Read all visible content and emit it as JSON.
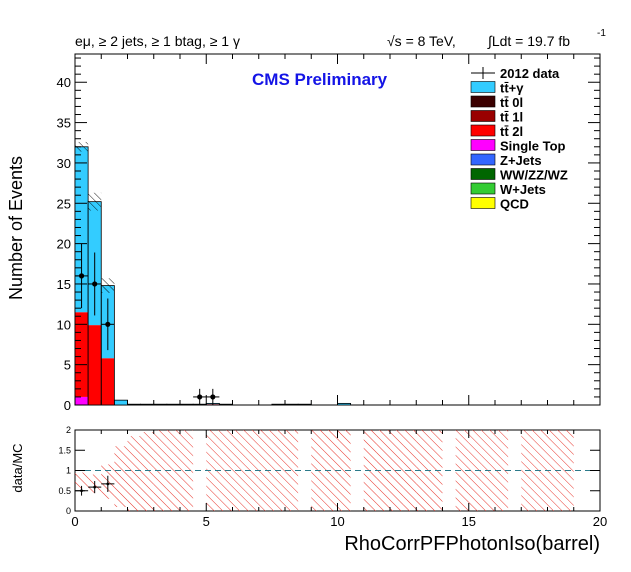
{
  "header": {
    "selection": "eμ, ≥ 2 jets, ≥ 1 btag, ≥ 1 γ",
    "energy": "√s = 8 TeV,",
    "lumi": "∫Ldt = 19.7 fb",
    "lumi_sup": "-1"
  },
  "watermark": "CMS Preliminary",
  "chart_data": [
    {
      "type": "bar",
      "stacked": true,
      "xlabel": "RhoCorrPFPhotonIso(barrel)",
      "ylabel": "Number of Events",
      "xlim": [
        0,
        20
      ],
      "ylim": [
        0,
        43.5
      ],
      "x_ticks": [
        0,
        5,
        10,
        15,
        20
      ],
      "y_ticks": [
        0,
        5,
        10,
        15,
        20,
        25,
        30,
        35,
        40
      ],
      "bin_width": 0.5,
      "bins": [
        0.0,
        0.5,
        1.0,
        1.5,
        2.0,
        2.5,
        3.0,
        3.5,
        4.0,
        4.5,
        5.0,
        5.5,
        6.0,
        6.5,
        7.0,
        7.5,
        8.0,
        8.5,
        9.0,
        9.5,
        10.0,
        10.5,
        11.0,
        11.5,
        12.0,
        12.5,
        13.0,
        13.5,
        14.0,
        14.5,
        15.0,
        15.5,
        16.0,
        16.5,
        17.0,
        17.5,
        18.0,
        18.5,
        19.0,
        19.5
      ],
      "series": [
        {
          "name": "tt̄+γ",
          "color": "#33ccff",
          "values": [
            20.5,
            15.3,
            9.0,
            0.6,
            0.1,
            0.1,
            0.1,
            0.1,
            0.1,
            0.1,
            0.1,
            0.1,
            0,
            0,
            0,
            0.1,
            0.1,
            0.1,
            0,
            0,
            0.2,
            0,
            0,
            0,
            0,
            0,
            0,
            0,
            0,
            0,
            0,
            0,
            0,
            0,
            0,
            0,
            0,
            0,
            0,
            0
          ]
        },
        {
          "name": "tt̄ 0l",
          "color": "#3b0000",
          "values": [
            0,
            0,
            0,
            0,
            0,
            0,
            0,
            0,
            0,
            0,
            0,
            0,
            0,
            0,
            0,
            0,
            0,
            0,
            0,
            0,
            0,
            0,
            0,
            0,
            0,
            0,
            0,
            0,
            0,
            0,
            0,
            0,
            0,
            0,
            0,
            0,
            0,
            0,
            0,
            0
          ]
        },
        {
          "name": "tt̄ 1l",
          "color": "#990000",
          "values": [
            0,
            0,
            0,
            0,
            0,
            0,
            0,
            0,
            0,
            0,
            0,
            0,
            0,
            0,
            0,
            0,
            0,
            0,
            0,
            0,
            0,
            0,
            0,
            0,
            0,
            0,
            0,
            0,
            0,
            0,
            0,
            0,
            0,
            0,
            0,
            0,
            0,
            0,
            0,
            0
          ]
        },
        {
          "name": "tt̄ 2l",
          "color": "#ff0000",
          "values": [
            10.5,
            9.9,
            5.8,
            0,
            0,
            0,
            0,
            0,
            0,
            0,
            0.1,
            0,
            0,
            0,
            0,
            0,
            0,
            0,
            0,
            0,
            0,
            0,
            0,
            0,
            0,
            0,
            0,
            0,
            0,
            0,
            0,
            0,
            0,
            0,
            0,
            0,
            0,
            0,
            0,
            0
          ]
        },
        {
          "name": "Single Top",
          "color": "#ff00ff",
          "values": [
            1.0,
            0,
            0,
            0,
            0,
            0,
            0,
            0,
            0,
            0,
            0,
            0,
            0,
            0,
            0,
            0,
            0,
            0,
            0,
            0,
            0,
            0,
            0,
            0,
            0,
            0,
            0,
            0,
            0,
            0,
            0,
            0,
            0,
            0,
            0,
            0,
            0,
            0,
            0,
            0
          ]
        },
        {
          "name": "Z+Jets",
          "color": "#3366ff",
          "values": [
            0,
            0,
            0,
            0,
            0,
            0,
            0,
            0,
            0,
            0,
            0,
            0,
            0,
            0,
            0,
            0,
            0,
            0,
            0,
            0,
            0,
            0,
            0,
            0,
            0,
            0,
            0,
            0,
            0,
            0,
            0,
            0,
            0,
            0,
            0,
            0,
            0,
            0,
            0,
            0
          ]
        },
        {
          "name": "WW/ZZ/WZ",
          "color": "#006600",
          "values": [
            0,
            0,
            0,
            0,
            0,
            0,
            0,
            0,
            0,
            0,
            0,
            0,
            0,
            0,
            0,
            0,
            0,
            0,
            0,
            0,
            0,
            0,
            0,
            0,
            0,
            0,
            0,
            0,
            0,
            0,
            0,
            0,
            0,
            0,
            0,
            0,
            0,
            0,
            0,
            0
          ]
        },
        {
          "name": "W+Jets",
          "color": "#33cc33",
          "values": [
            0,
            0,
            0,
            0,
            0,
            0,
            0,
            0,
            0,
            0,
            0,
            0,
            0,
            0,
            0,
            0,
            0,
            0,
            0,
            0,
            0,
            0,
            0,
            0,
            0,
            0,
            0,
            0,
            0,
            0,
            0,
            0,
            0,
            0,
            0,
            0,
            0,
            0,
            0,
            0
          ]
        },
        {
          "name": "QCD",
          "color": "#ffff00",
          "values": [
            0,
            0,
            0,
            0,
            0,
            0,
            0,
            0,
            0,
            0,
            0,
            0,
            0,
            0,
            0,
            0,
            0,
            0,
            0,
            0,
            0,
            0,
            0,
            0,
            0,
            0,
            0,
            0,
            0,
            0,
            0,
            0,
            0,
            0,
            0,
            0,
            0,
            0,
            0,
            0
          ]
        }
      ],
      "uncertainty": [
        {
          "x": 0.25,
          "halfwidth": 0.6
        },
        {
          "x": 0.75,
          "halfwidth": 1.1
        },
        {
          "x": 1.25,
          "halfwidth": 0.9
        }
      ],
      "data": {
        "name": "2012 data",
        "points": [
          {
            "x": 0.25,
            "y": 16,
            "err": 4
          },
          {
            "x": 0.75,
            "y": 15,
            "err": 3.9
          },
          {
            "x": 1.25,
            "y": 10,
            "err": 3.2
          },
          {
            "x": 4.75,
            "y": 1,
            "err": 1
          },
          {
            "x": 5.25,
            "y": 1,
            "err": 1
          }
        ]
      },
      "legend_position": "top-right"
    },
    {
      "type": "scatter",
      "xlabel": "RhoCorrPFPhotonIso(barrel)",
      "ylabel": "data/MC",
      "xlim": [
        0,
        20
      ],
      "ylim": [
        0,
        2
      ],
      "x_ticks": [
        0,
        5,
        10,
        15,
        20
      ],
      "y_ticks": [
        0,
        0.5,
        1,
        1.5,
        2
      ],
      "reference_line": 1,
      "points": [
        {
          "x": 0.25,
          "y": 0.5,
          "err": 0.12
        },
        {
          "x": 0.75,
          "y": 0.59,
          "err": 0.15
        },
        {
          "x": 1.25,
          "y": 0.67,
          "err": 0.2
        }
      ],
      "uncertainty_band": "hatched, 0 to 2 across bins with prediction"
    }
  ]
}
